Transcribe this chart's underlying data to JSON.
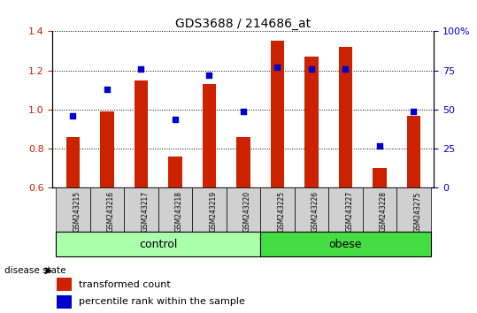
{
  "title": "GDS3688 / 214686_at",
  "samples": [
    "GSM243215",
    "GSM243216",
    "GSM243217",
    "GSM243218",
    "GSM243219",
    "GSM243220",
    "GSM243225",
    "GSM243226",
    "GSM243227",
    "GSM243228",
    "GSM243275"
  ],
  "transformed_count": [
    0.86,
    0.99,
    1.15,
    0.76,
    1.13,
    0.86,
    1.35,
    1.27,
    1.32,
    0.7,
    0.97
  ],
  "percentile_rank": [
    46,
    63,
    76,
    44,
    72,
    49,
    77,
    76,
    76,
    27,
    49
  ],
  "groups": [
    {
      "label": "control",
      "indices": [
        0,
        1,
        2,
        3,
        4,
        5
      ],
      "color": "#aaffaa"
    },
    {
      "label": "obese",
      "indices": [
        6,
        7,
        8,
        9,
        10
      ],
      "color": "#44dd44"
    }
  ],
  "ylim_left": [
    0.6,
    1.4
  ],
  "ylim_right": [
    0,
    100
  ],
  "yticks_left": [
    0.6,
    0.8,
    1.0,
    1.2,
    1.4
  ],
  "yticks_right": [
    0,
    25,
    50,
    75,
    100
  ],
  "bar_color": "#CC2200",
  "dot_color": "#0000CC",
  "bar_width": 0.4,
  "ylabel_left_color": "#CC2200",
  "ylabel_right_color": "#0000CC",
  "disease_state_label": "disease state",
  "legend_bar_label": "transformed count",
  "legend_dot_label": "percentile rank within the sample",
  "cell_bg": "#D0D0D0"
}
